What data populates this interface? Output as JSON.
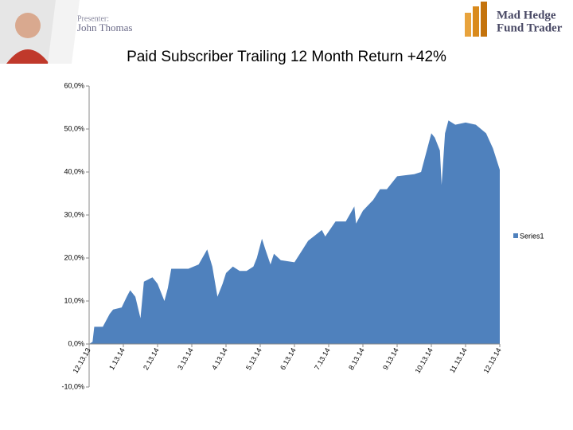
{
  "header": {
    "presenter_label": "Presenter:",
    "presenter_name": "John Thomas",
    "logo_line1": "Mad Hedge",
    "logo_line2": "Fund Trader"
  },
  "chart_data": {
    "type": "area",
    "title": "Paid Subscriber Trailing 12 Month Return +42%",
    "series": [
      {
        "name": "Series1",
        "color": "#4f81bd",
        "x": [
          0,
          0.1,
          0.15,
          0.4,
          0.6,
          0.7,
          0.95,
          1.1,
          1.2,
          1.35,
          1.5,
          1.6,
          1.85,
          2.0,
          2.2,
          2.3,
          2.4,
          2.9,
          3.2,
          3.45,
          3.6,
          3.75,
          3.9,
          4.0,
          4.2,
          4.4,
          4.6,
          4.8,
          4.9,
          5.05,
          5.15,
          5.3,
          5.4,
          5.6,
          6.0,
          6.4,
          6.8,
          6.9,
          7.2,
          7.5,
          7.75,
          7.8,
          8.0,
          8.3,
          8.5,
          8.7,
          9.0,
          9.5,
          9.7,
          9.8,
          10.0,
          10.1,
          10.25,
          10.3,
          10.4,
          10.5,
          10.7,
          11.0,
          11.3,
          11.6,
          11.8,
          12.0
        ],
        "values": [
          0,
          0.5,
          4,
          4,
          7,
          8,
          8.5,
          11,
          12.5,
          11,
          6,
          14.5,
          15.5,
          14,
          10,
          13,
          17.5,
          17.5,
          18.5,
          22,
          18,
          11,
          14,
          16.5,
          18,
          17,
          17,
          18,
          20,
          24.5,
          22,
          18.5,
          21,
          19.5,
          19,
          24,
          26.5,
          25,
          28.5,
          28.5,
          32,
          28,
          31,
          33.5,
          36,
          36,
          39,
          39.5,
          40,
          43,
          49,
          48,
          45,
          37,
          49,
          52,
          51,
          51.5,
          51,
          49,
          45.5,
          40.5
        ]
      }
    ],
    "xlim": [
      0,
      12
    ],
    "xticks": [
      {
        "value": 0,
        "label": "12.13.13"
      },
      {
        "value": 1,
        "label": "1.13.14"
      },
      {
        "value": 2,
        "label": "2.13.14"
      },
      {
        "value": 3,
        "label": "3.13.14"
      },
      {
        "value": 4,
        "label": "4.13.14"
      },
      {
        "value": 5,
        "label": "5.13.14"
      },
      {
        "value": 6,
        "label": "6.13.14"
      },
      {
        "value": 7,
        "label": "7.13.14"
      },
      {
        "value": 8,
        "label": "8.13.14"
      },
      {
        "value": 9,
        "label": "9.13.14"
      },
      {
        "value": 10,
        "label": "10.13.14"
      },
      {
        "value": 11,
        "label": "11.13.14"
      },
      {
        "value": 12,
        "label": "12.13.14"
      }
    ],
    "ylim": [
      -10,
      60
    ],
    "yticks": [
      {
        "value": -10,
        "label": "-10,0%"
      },
      {
        "value": 0,
        "label": "0,0%"
      },
      {
        "value": 10,
        "label": "10,0%"
      },
      {
        "value": 20,
        "label": "20,0%"
      },
      {
        "value": 30,
        "label": "30,0%"
      },
      {
        "value": 40,
        "label": "40,0%"
      },
      {
        "value": 50,
        "label": "50,0%"
      },
      {
        "value": 60,
        "label": "60,0%"
      }
    ],
    "grid": false,
    "legend": "right"
  }
}
